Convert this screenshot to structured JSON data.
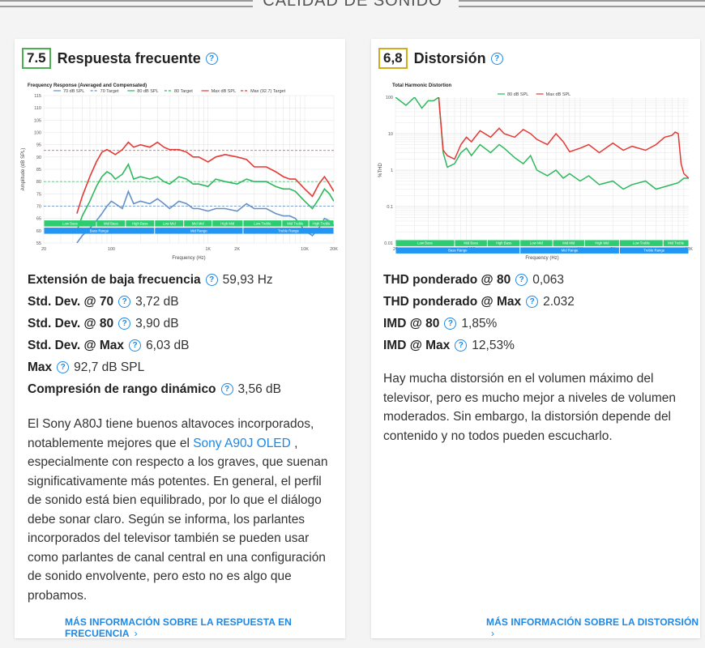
{
  "section": {
    "title": "CALIDAD DE SONIDO"
  },
  "colors": {
    "accent": "#1e88e5",
    "score_green": "#4caf50",
    "score_yellow": "#d0ad1b",
    "series_70": "#6690c8",
    "series_80": "#2eb85c",
    "series_max": "#e53935",
    "band_green": "#2ecc71",
    "band_blue": "#2196f3"
  },
  "left": {
    "score": "7.5",
    "title": "Respuesta frecuente",
    "stats": [
      {
        "label": "Extensión de baja frecuencia",
        "value": "59,93 Hz"
      },
      {
        "label": "Std. Dev. @ 70",
        "value": "3,72 dB"
      },
      {
        "label": "Std. Dev. @ 80",
        "value": "3,90 dB"
      },
      {
        "label": "Std. Dev. @ Max",
        "value": "6,03 dB"
      },
      {
        "label": "Max",
        "value": "92,7 dB SPL"
      },
      {
        "label": "Compresión de rango dinámico",
        "value": "3,56 dB"
      }
    ],
    "desc_before": "El Sony A80J tiene buenos altavoces incorporados, notablemente mejores que el ",
    "desc_link": "Sony A90J OLED",
    "desc_after": " , especialmente con respecto a los graves, que suenan significativamente más potentes. En general, el perfil de sonido está bien equilibrado, por lo que el diálogo debe sonar claro. Según se informa, los parlantes incorporados del televisor también se pueden usar como parlantes de canal central en una configuración de sonido envolvente, pero esto no es algo que probamos.",
    "more_link": "MÁS INFORMACIÓN SOBRE LA RESPUESTA EN FRECUENCIA"
  },
  "right": {
    "score": "6,8",
    "title": "Distorsión",
    "stats": [
      {
        "label": "THD ponderado @ 80",
        "value": "0,063"
      },
      {
        "label": "THD ponderado @ Max",
        "value": "2.032"
      },
      {
        "label": "IMD @ 80",
        "value": "1,85%"
      },
      {
        "label": "IMD @ Max",
        "value": "12,53%"
      }
    ],
    "desc": "Hay mucha distorsión en el volumen máximo del televisor, pero es mucho mejor a niveles de volumen moderados. Sin embargo, la distorsión depende del contenido y no todos pueden escucharlo.",
    "more_link": "MÁS INFORMACIÓN SOBRE LA DISTORSIÓN"
  },
  "chart_data": [
    {
      "type": "line",
      "title": "Frequency Response (Averaged and Compensated)",
      "xlabel": "Frequency (Hz)",
      "ylabel": "Amplitude (dB SPL)",
      "xscale": "log",
      "xlim": [
        20,
        20000
      ],
      "ylim": [
        55,
        115
      ],
      "xticks": [
        "20",
        "100",
        "1K",
        "2K",
        "10K",
        "20K"
      ],
      "yticks": [
        55,
        60,
        65,
        70,
        75,
        80,
        85,
        90,
        95,
        100,
        105,
        110,
        115
      ],
      "legend_position": "top",
      "legend": [
        "70 dB SPL",
        "70 Target",
        "80 dB SPL",
        "80 Target",
        "Max dB SPL",
        "Max (92.7) Target"
      ],
      "targets": [
        {
          "name": "70 Target",
          "value": 70
        },
        {
          "name": "80 Target",
          "value": 80
        },
        {
          "name": "Max (92.7) Target",
          "value": 92.7
        }
      ],
      "series": [
        {
          "name": "70 dB SPL",
          "x": [
            44,
            50,
            60,
            70,
            80,
            90,
            100,
            110,
            130,
            150,
            170,
            200,
            250,
            300,
            350,
            400,
            500,
            600,
            700,
            800,
            1000,
            1200,
            1500,
            2000,
            2500,
            3000,
            4000,
            5000,
            6000,
            7000,
            8000,
            10000,
            12000,
            14000,
            16000,
            18000,
            20000
          ],
          "y": [
            55,
            58,
            61,
            64,
            67,
            70,
            72,
            71,
            69,
            76,
            71,
            72,
            71,
            73,
            71,
            69,
            72,
            71,
            69,
            69,
            68,
            69,
            69,
            68,
            71,
            69,
            69,
            67,
            66,
            66,
            65,
            60,
            58,
            61,
            65,
            64,
            62
          ]
        },
        {
          "name": "80 dB SPL",
          "x": [
            44,
            50,
            60,
            70,
            80,
            90,
            100,
            110,
            130,
            150,
            170,
            200,
            250,
            300,
            350,
            400,
            500,
            600,
            700,
            800,
            1000,
            1200,
            1500,
            2000,
            2500,
            3000,
            4000,
            5000,
            6000,
            7000,
            8000,
            10000,
            12000,
            14000,
            16000,
            18000,
            20000
          ],
          "y": [
            60,
            66,
            72,
            78,
            82,
            84,
            83,
            81,
            83,
            87,
            81,
            82,
            81,
            82,
            80,
            79,
            82,
            81,
            79,
            79,
            78,
            81,
            80,
            79,
            81,
            80,
            80,
            78,
            77,
            77,
            76,
            72,
            69,
            73,
            77,
            75,
            72
          ]
        },
        {
          "name": "Max dB SPL",
          "x": [
            44,
            50,
            60,
            70,
            80,
            90,
            100,
            110,
            130,
            150,
            170,
            200,
            250,
            300,
            350,
            400,
            500,
            600,
            700,
            800,
            1000,
            1200,
            1500,
            2000,
            2500,
            3000,
            4000,
            5000,
            6000,
            7000,
            8000,
            10000,
            12000,
            14000,
            16000,
            18000,
            20000
          ],
          "y": [
            67,
            74,
            82,
            88,
            92,
            93,
            92,
            91,
            93,
            96,
            94,
            95,
            94,
            96,
            94,
            93,
            93,
            92,
            90,
            90,
            88,
            90,
            91,
            90,
            89,
            86,
            86,
            84,
            82,
            81,
            81,
            77,
            74,
            79,
            82,
            79,
            76
          ]
        }
      ]
    },
    {
      "type": "line",
      "title": "Total Harmonic Distortion",
      "xlabel": "Frequency (Hz)",
      "ylabel": "%THD",
      "xscale": "log",
      "yscale": "log",
      "xlim": [
        20,
        10000
      ],
      "ylim": [
        0.01,
        100
      ],
      "xticks": [
        "20",
        "100",
        "1K",
        "2K",
        "10K"
      ],
      "yticks": [
        "0.01",
        "0.1",
        "1",
        "10",
        "100"
      ],
      "legend_position": "top",
      "legend": [
        "80 dB SPL",
        "Max dB SPL"
      ],
      "series": [
        {
          "name": "80 dB SPL",
          "x": [
            20,
            25,
            30,
            35,
            40,
            45,
            50,
            55,
            60,
            70,
            80,
            90,
            100,
            120,
            150,
            180,
            200,
            250,
            300,
            350,
            400,
            500,
            600,
            700,
            800,
            1000,
            1200,
            1500,
            2000,
            2500,
            3000,
            4000,
            5000,
            6000,
            7000,
            8000,
            9000,
            10000
          ],
          "y": [
            100,
            60,
            100,
            50,
            80,
            80,
            100,
            3,
            1.2,
            1.5,
            3,
            4,
            2.5,
            5,
            3,
            5,
            4,
            2.2,
            1.5,
            2.5,
            1,
            0.7,
            1,
            0.6,
            0.8,
            0.5,
            0.7,
            0.4,
            0.5,
            0.3,
            0.4,
            0.5,
            0.3,
            0.35,
            0.4,
            0.45,
            0.6,
            0.6
          ]
        },
        {
          "name": "Max dB SPL",
          "x": [
            50,
            55,
            60,
            70,
            80,
            90,
            100,
            120,
            150,
            180,
            200,
            250,
            300,
            350,
            400,
            500,
            600,
            700,
            800,
            1000,
            1200,
            1500,
            2000,
            2500,
            3000,
            4000,
            5000,
            6000,
            7000,
            7500,
            8000,
            8500,
            9000,
            10000
          ],
          "y": [
            100,
            3.5,
            2.5,
            2,
            5,
            8,
            6,
            12,
            8,
            14,
            10,
            8,
            13,
            10,
            7,
            5,
            10,
            6,
            3.2,
            4,
            5,
            3,
            5.5,
            3.5,
            4.5,
            3.5,
            5,
            8,
            9,
            11,
            10,
            1.5,
            0.8,
            0.6
          ]
        }
      ]
    }
  ]
}
